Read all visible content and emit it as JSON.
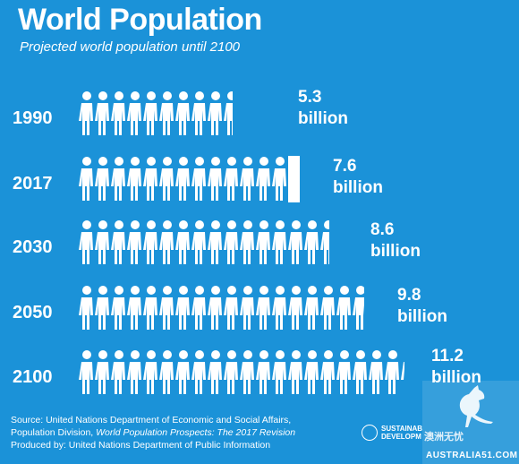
{
  "header": {
    "title": "World Population",
    "subtitle": "Projected world population until 2100"
  },
  "rows": [
    {
      "year": "1990",
      "value": "5.3",
      "unit": "billion",
      "population_billion": 5.3,
      "icon_count": 11
    },
    {
      "year": "2017",
      "value": "7.6",
      "unit": "billion",
      "population_billion": 7.6,
      "icon_count": 13
    },
    {
      "year": "2030",
      "value": "8.6",
      "unit": "billion",
      "population_billion": 8.6,
      "icon_count": 16
    },
    {
      "year": "2050",
      "value": "9.8",
      "unit": "billion",
      "population_billion": 9.8,
      "icon_count": 18
    },
    {
      "year": "2100",
      "value": "11.2",
      "unit": "billion",
      "population_billion": 11.2,
      "icon_count": 21
    }
  ],
  "colors": {
    "background": "#1b92d8",
    "foreground": "#ffffff"
  },
  "icons": {
    "person": "person-icon"
  },
  "footer": {
    "source_line1": "Source: United Nations Department of Economic and Social Affairs,",
    "source_line2_prefix": "Population Division, ",
    "source_line2_title": "World Population Prospects: The 2017 Revision",
    "source_line3": "Produced by: United Nations Department of Public Information",
    "logo_text_1": "SUSTAINAB",
    "logo_text_2": "DEVELOPM"
  },
  "watermark": {
    "text": "澳洲无忧",
    "domain": "AUSTRALIA51.COM"
  }
}
